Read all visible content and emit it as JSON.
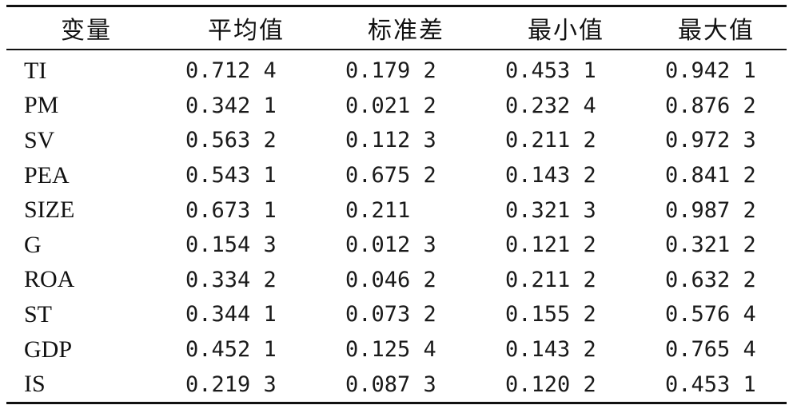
{
  "table": {
    "headers": [
      "变量",
      "平均值",
      "标准差",
      "最小值",
      "最大值"
    ],
    "rows": [
      {
        "var": "TI",
        "mean": "0.712 4",
        "sd": "0.179 2",
        "min": "0.453 1",
        "max": "0.942 1"
      },
      {
        "var": "PM",
        "mean": "0.342 1",
        "sd": "0.021 2",
        "min": "0.232 4",
        "max": "0.876 2"
      },
      {
        "var": "SV",
        "mean": "0.563 2",
        "sd": "0.112 3",
        "min": "0.211 2",
        "max": "0.972 3"
      },
      {
        "var": "PEA",
        "mean": "0.543 1",
        "sd": "0.675 2",
        "min": "0.143 2",
        "max": "0.841 2"
      },
      {
        "var": "SIZE",
        "mean": "0.673 1",
        "sd": "0.211",
        "min": "0.321 3",
        "max": "0.987 2"
      },
      {
        "var": "G",
        "mean": "0.154 3",
        "sd": "0.012 3",
        "min": "0.121 2",
        "max": "0.321 2"
      },
      {
        "var": "ROA",
        "mean": "0.334 2",
        "sd": "0.046 2",
        "min": "0.211 2",
        "max": "0.632 2"
      },
      {
        "var": "ST",
        "mean": "0.344 1",
        "sd": "0.073 2",
        "min": "0.155 2",
        "max": "0.576 4"
      },
      {
        "var": "GDP",
        "mean": "0.452 1",
        "sd": "0.125 4",
        "min": "0.143 2",
        "max": "0.765 4"
      },
      {
        "var": "IS",
        "mean": "0.219 3",
        "sd": "0.087 3",
        "min": "0.120 2",
        "max": "0.453 1"
      }
    ]
  }
}
